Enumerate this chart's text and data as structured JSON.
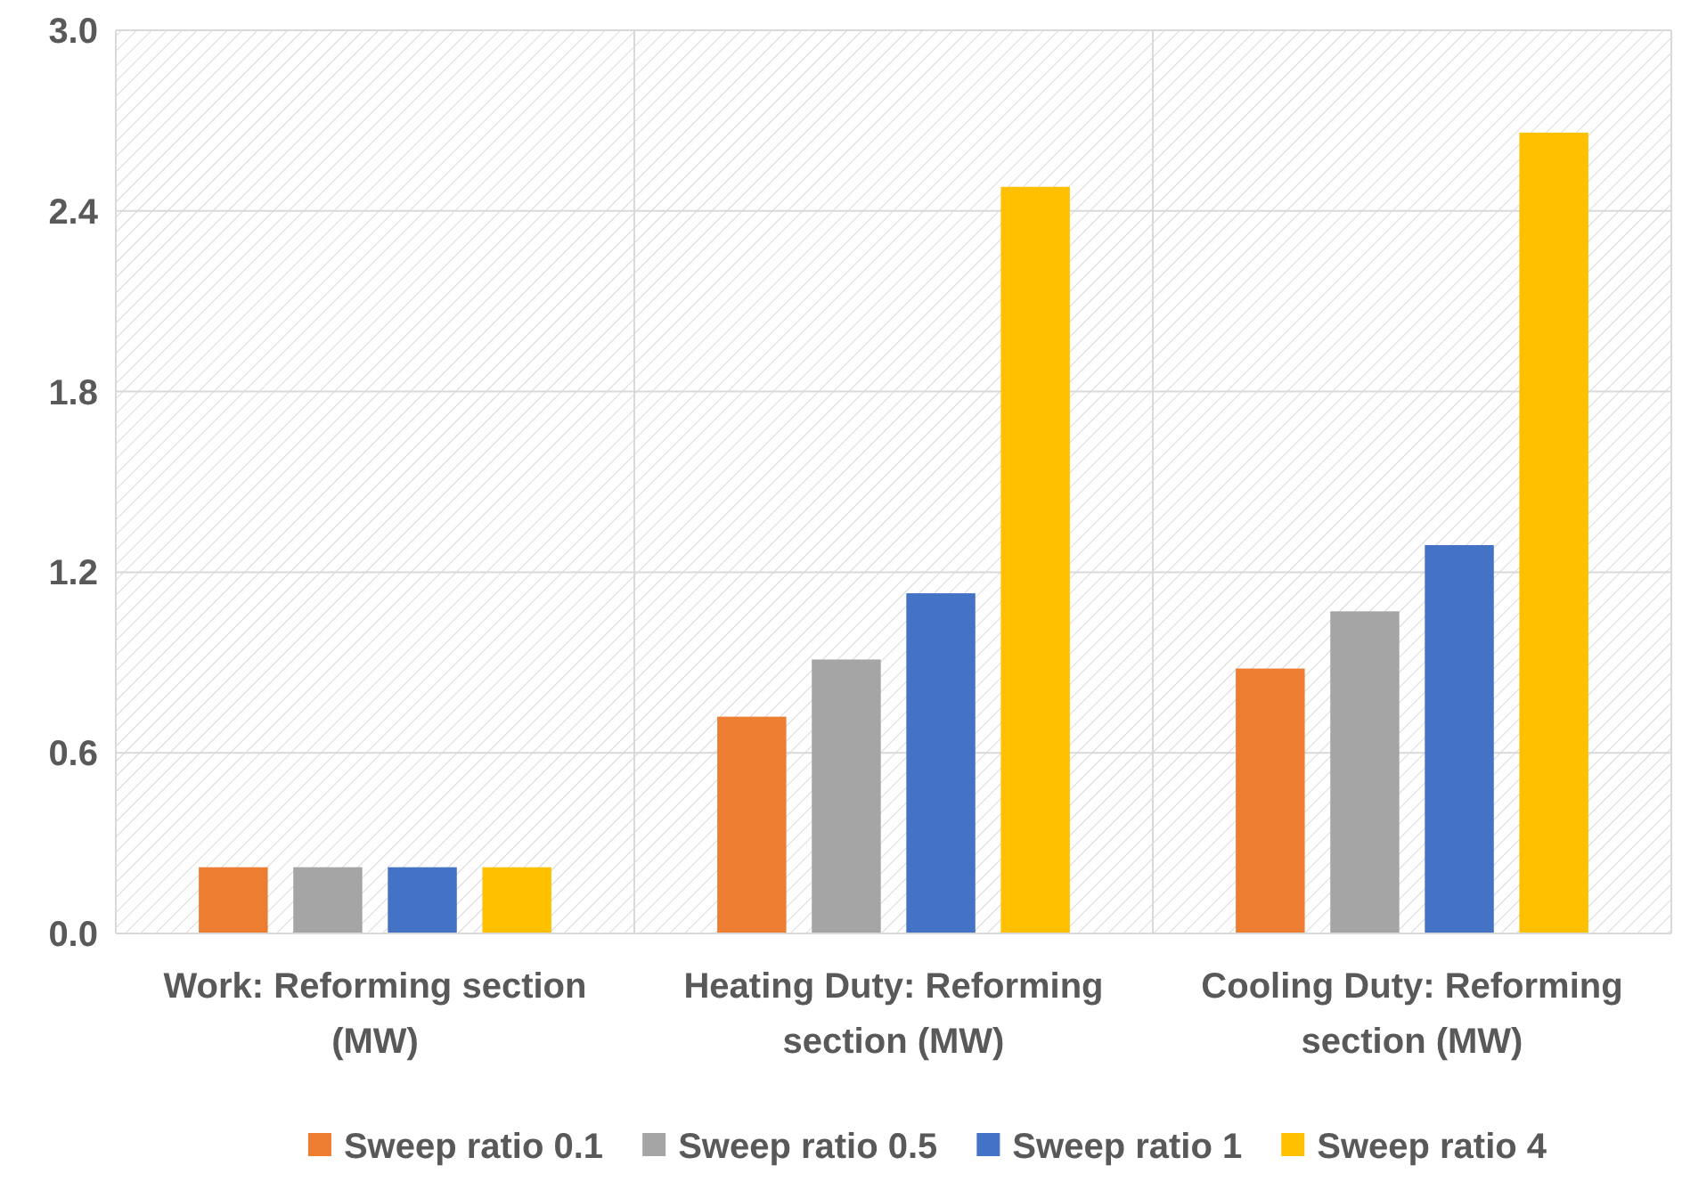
{
  "chart_data": {
    "type": "bar",
    "categories": [
      "Work: Reforming section (MW)",
      "Heating Duty: Reforming section (MW)",
      "Cooling Duty: Reforming section (MW)"
    ],
    "series": [
      {
        "name": "Sweep ratio 0.1",
        "color": "#ed7d31",
        "values": [
          0.22,
          0.72,
          0.88
        ]
      },
      {
        "name": "Sweep ratio 0.5",
        "color": "#a5a5a5",
        "values": [
          0.22,
          0.91,
          1.07
        ]
      },
      {
        "name": "Sweep ratio 1",
        "color": "#4472c4",
        "values": [
          0.22,
          1.13,
          1.29
        ]
      },
      {
        "name": "Sweep ratio 4",
        "color": "#ffc000",
        "values": [
          0.22,
          2.48,
          2.66
        ]
      }
    ],
    "ylim": [
      0,
      3
    ],
    "yticks": [
      {
        "value": 0,
        "label": "0.0"
      },
      0.6,
      1.2,
      1.8,
      2.4,
      {
        "value": 3,
        "label": "3.0"
      }
    ],
    "grid": true,
    "legend": "bottom"
  }
}
